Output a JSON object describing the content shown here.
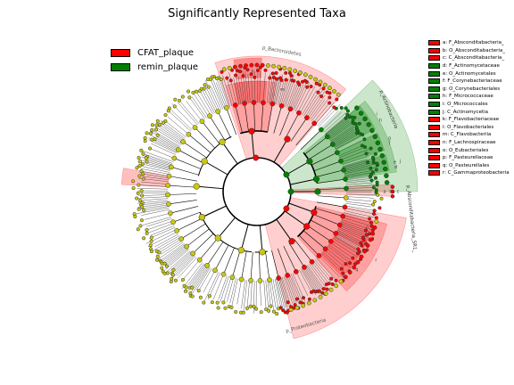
{
  "title": "Significantly Represented Taxa",
  "colors": {
    "cfat": "#ff0000",
    "remin": "#008000",
    "neutral": "#c8c80f"
  },
  "legend": [
    {
      "label": "CFAT_plaque",
      "color": "#ff0000"
    },
    {
      "label": "remin_plaque",
      "color": "#008000"
    }
  ],
  "chart_data": {
    "type": "cladogram",
    "clades": [
      {
        "label": "a",
        "name": "F_Absconditabacteria_",
        "group": "CFAT_plaque"
      },
      {
        "label": "b",
        "name": "O_Absconditabacteria_",
        "group": "CFAT_plaque"
      },
      {
        "label": "c",
        "name": "C_Absconditabacteria_",
        "group": "CFAT_plaque"
      },
      {
        "label": "d",
        "name": "F_Actinomycetaceae",
        "group": "remin_plaque"
      },
      {
        "label": "e",
        "name": "O_Actinomycetales",
        "group": "remin_plaque"
      },
      {
        "label": "f",
        "name": "F_Corynebacteriaceae",
        "group": "remin_plaque"
      },
      {
        "label": "g",
        "name": "O_Corynebacteriales",
        "group": "remin_plaque"
      },
      {
        "label": "h",
        "name": "F_Micrococcaceae",
        "group": "remin_plaque"
      },
      {
        "label": "i",
        "name": "O_Micrococcales",
        "group": "remin_plaque"
      },
      {
        "label": "j",
        "name": "C_Actinomycetia",
        "group": "remin_plaque"
      },
      {
        "label": "k",
        "name": "F_Flavobacteriaceae",
        "group": "CFAT_plaque"
      },
      {
        "label": "l",
        "name": "O_Flavobacteriales",
        "group": "CFAT_plaque"
      },
      {
        "label": "m",
        "name": "C_Flavobacteriia",
        "group": "CFAT_plaque"
      },
      {
        "label": "n",
        "name": "F_Lachnospiraceae",
        "group": "CFAT_plaque"
      },
      {
        "label": "o",
        "name": "O_Eubacteriales",
        "group": "CFAT_plaque"
      },
      {
        "label": "p",
        "name": "F_Pasteurellaceae",
        "group": "CFAT_plaque"
      },
      {
        "label": "q",
        "name": "O_Pasteurellales",
        "group": "CFAT_plaque"
      },
      {
        "label": "r",
        "name": "C_Gammaproteobacteria",
        "group": "CFAT_plaque"
      }
    ],
    "phylum_labels": [
      {
        "text": "p_Bacteroidetes",
        "group": "CFAT_plaque"
      },
      {
        "text": "p_Actinobacteria",
        "group": "remin_plaque"
      },
      {
        "text": "p_Absconditabacteria_SR1_",
        "group": "CFAT_plaque"
      },
      {
        "text": "p_Proteobacteria",
        "group": "CFAT_plaque"
      }
    ],
    "sector_labels": [
      "m",
      "l",
      "k",
      "j",
      "i",
      "h",
      "g",
      "f",
      "e",
      "d",
      "c",
      "b",
      "a",
      "r",
      "q",
      "p",
      "o",
      "n"
    ],
    "legend_position": "top-left",
    "key_position": "right"
  }
}
